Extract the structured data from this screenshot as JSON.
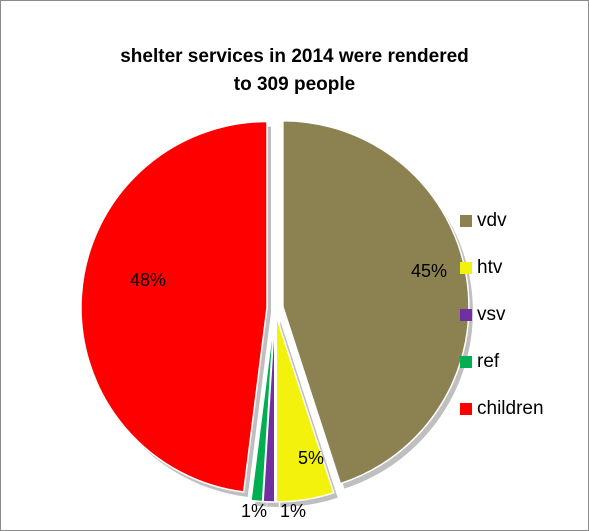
{
  "chart_data": {
    "type": "pie",
    "title": "shelter services in 2014 were rendered to 309 people",
    "title_lines": [
      "shelter services in 2014 were rendered",
      "to 309 people"
    ],
    "legend_placement": "right",
    "slices": [
      {
        "name": "vdv",
        "value": 45,
        "label": "45%",
        "color": "#8b8151"
      },
      {
        "name": "htv",
        "value": 5,
        "label": "5%",
        "color": "#f2f20c"
      },
      {
        "name": "vsv",
        "value": 1,
        "label": "1%",
        "color": "#7030a0"
      },
      {
        "name": "ref",
        "value": 1,
        "label": "1%",
        "color": "#00b050"
      },
      {
        "name": "children",
        "value": 48,
        "label": "48%",
        "color": "#ff0000"
      }
    ]
  }
}
